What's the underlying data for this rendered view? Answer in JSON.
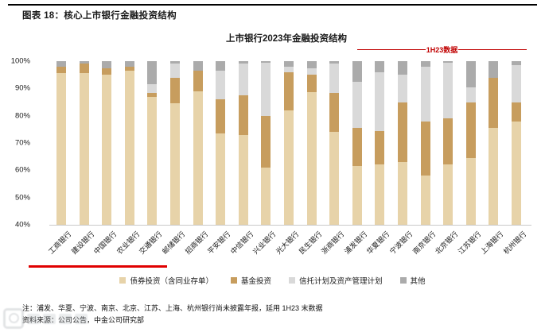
{
  "header": {
    "title": "图表 18：核心上市银行金融投资结构"
  },
  "footer": {
    "note": "注：浦发、华夏、宁波、南京、北京、江苏、上海、杭州银行尚未披露年报，延用 1H23 末数据",
    "source": "资料来源：公司公告，中金公司研究部"
  },
  "colors": {
    "bond": "#e7d3a9",
    "fund": "#c79d5e",
    "trust": "#d9d9d9",
    "other": "#ababab",
    "annotation_red": "#c00000",
    "underline_red": "#e00000"
  },
  "chart_data": {
    "type": "bar",
    "stacked": true,
    "units": "percent",
    "title": "上市银行2023年金融投资结构",
    "annotation": {
      "label": "1H23数据",
      "covers": "浦发银行 至 杭州银行"
    },
    "ylim": [
      40,
      100
    ],
    "ytick_labels": [
      "100%",
      "90%",
      "80%",
      "70%",
      "60%",
      "50%",
      "40%"
    ],
    "grid": false,
    "legend_position": "bottom",
    "categories": [
      "工商银行",
      "建设银行",
      "中国银行",
      "农业银行",
      "交通银行",
      "邮储银行",
      "招商银行",
      "平安银行",
      "中信银行",
      "兴业银行",
      "光大银行",
      "民生银行",
      "浙商银行",
      "浦发银行",
      "华夏银行",
      "宁波银行",
      "南京银行",
      "北京银行",
      "江苏银行",
      "上海银行",
      "杭州银行"
    ],
    "underlined_categories": [
      "工商银行",
      "建设银行",
      "中国银行",
      "农业银行",
      "交通银行",
      "邮储银行"
    ],
    "series": [
      {
        "name": "债券投资（含同业存单）",
        "color": "#e7d3a9",
        "values": [
          95.5,
          95.5,
          95.0,
          96.5,
          87.0,
          84.5,
          89.0,
          73.5,
          73.0,
          61.0,
          82.0,
          88.5,
          74.0,
          61.5,
          62.0,
          63.0,
          58.0,
          62.0,
          64.5,
          75.5,
          78.0
        ]
      },
      {
        "name": "基金投资",
        "color": "#c79d5e",
        "values": [
          2.5,
          3.5,
          2.5,
          1.5,
          1.5,
          9.5,
          7.5,
          12.5,
          14.5,
          19.0,
          14.0,
          6.5,
          14.5,
          14.0,
          12.5,
          22.0,
          20.0,
          17.0,
          20.5,
          18.5,
          7.0
        ]
      },
      {
        "name": "信托计划及资产管理计划",
        "color": "#d9d9d9",
        "values": [
          0,
          0,
          0,
          0,
          3.0,
          5.0,
          0,
          10.5,
          11.5,
          19.5,
          2.0,
          2.5,
          10.5,
          17.0,
          21.5,
          10.0,
          20.0,
          20.5,
          5.5,
          0,
          13.5
        ]
      },
      {
        "name": "其他",
        "color": "#ababab",
        "values": [
          2.0,
          1.0,
          2.5,
          2.0,
          8.5,
          1.0,
          3.5,
          3.5,
          1.0,
          0.5,
          2.0,
          2.5,
          1.0,
          7.5,
          4.0,
          5.0,
          2.0,
          0.5,
          9.5,
          6.0,
          1.5
        ]
      }
    ]
  }
}
